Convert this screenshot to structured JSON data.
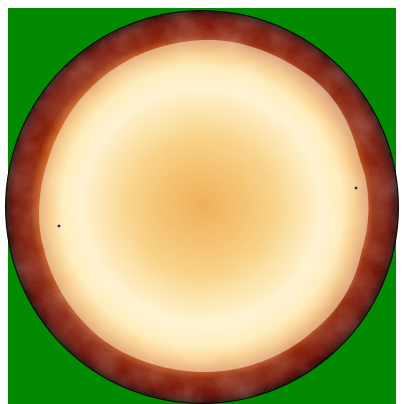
{
  "image": {
    "description_colors": {
      "background": "#ffffff",
      "plate": "#028a02",
      "rim": "#1a0000",
      "outer_ring": "#6a0a00",
      "glow_mid": "#f2a33a",
      "glow_bright": "#fff2c8",
      "center": "#f0b048",
      "specks": "#2a2a6a"
    }
  }
}
